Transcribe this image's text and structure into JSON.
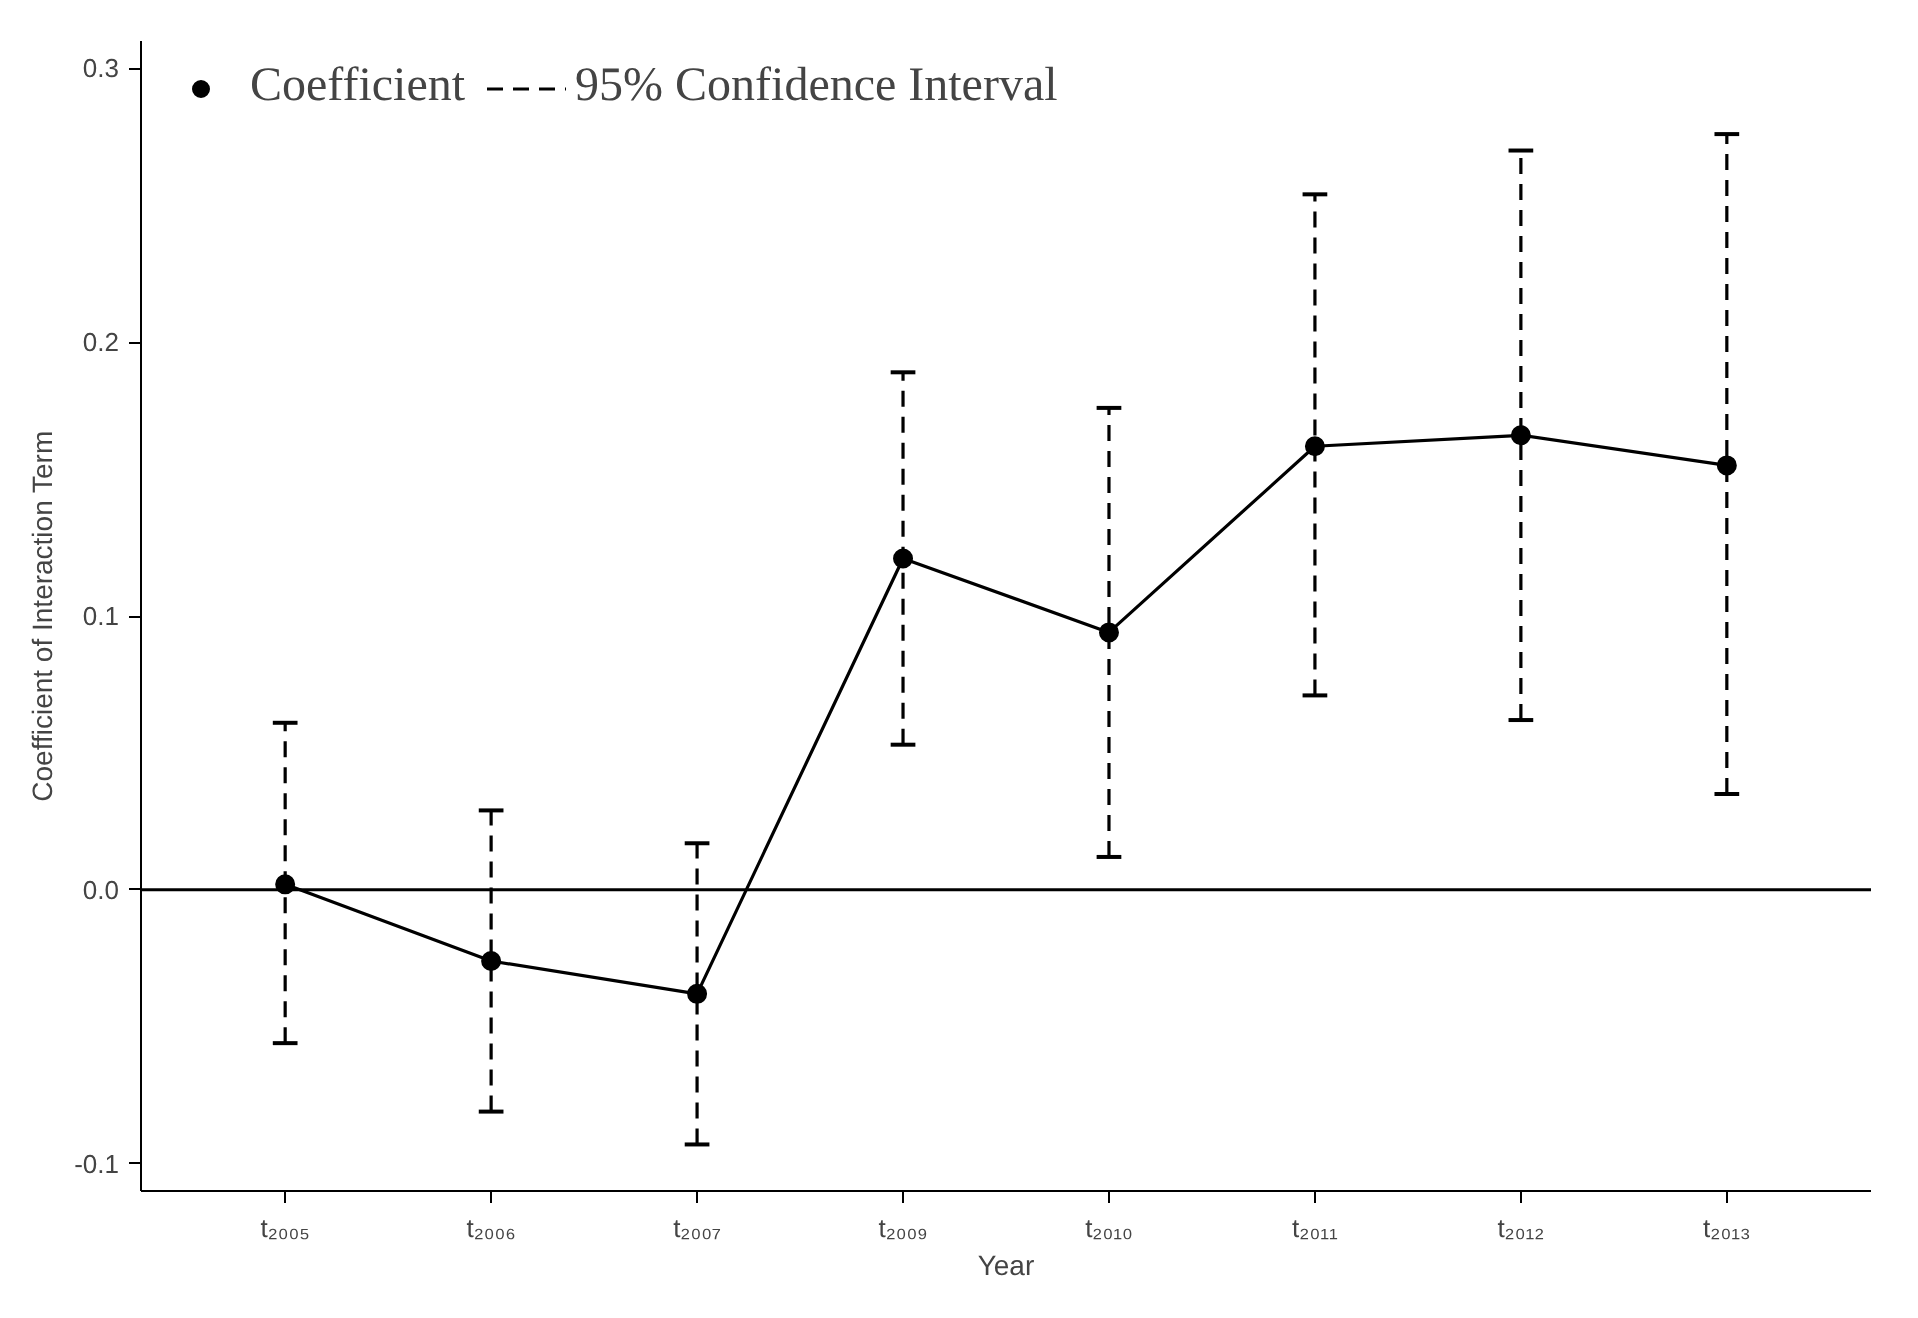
{
  "chart_data": {
    "type": "line",
    "xlabel": "Year",
    "ylabel": "Coefficient of Interaction Term",
    "categories": [
      "t₂₀₀₅",
      "t₂₀₀₆",
      "t₂₀₀₇",
      "t₂₀₀₉",
      "t₂₀₁₀",
      "t₂₀₁₁",
      "t₂₀₁₂",
      "t₂₀₁₃"
    ],
    "series": [
      {
        "name": "Coefficient",
        "color": "#000000",
        "values": [
          0.002,
          -0.026,
          -0.038,
          0.121,
          0.094,
          0.162,
          0.166,
          0.155
        ],
        "errors": [
          [
            -0.056,
            0.061
          ],
          [
            -0.081,
            0.029
          ],
          [
            -0.093,
            0.017
          ],
          [
            0.053,
            0.189
          ],
          [
            0.012,
            0.176
          ],
          [
            0.071,
            0.254
          ],
          [
            0.062,
            0.27
          ],
          [
            0.035,
            0.276
          ]
        ]
      }
    ],
    "annotations": [
      "95% Confidence Interval"
    ],
    "ylim": [
      -0.11,
      0.31
    ],
    "yticks": [
      {
        "value": -0.1,
        "label": "-0.1"
      },
      {
        "value": 0,
        "label": "0.0"
      },
      0.1,
      0.2,
      0.3
    ],
    "ref_lines": [
      {
        "axis": "y",
        "value": 0,
        "color": "#000000"
      }
    ],
    "marker": "circle",
    "line_style": "solid",
    "grid": false,
    "legend": "top left"
  }
}
